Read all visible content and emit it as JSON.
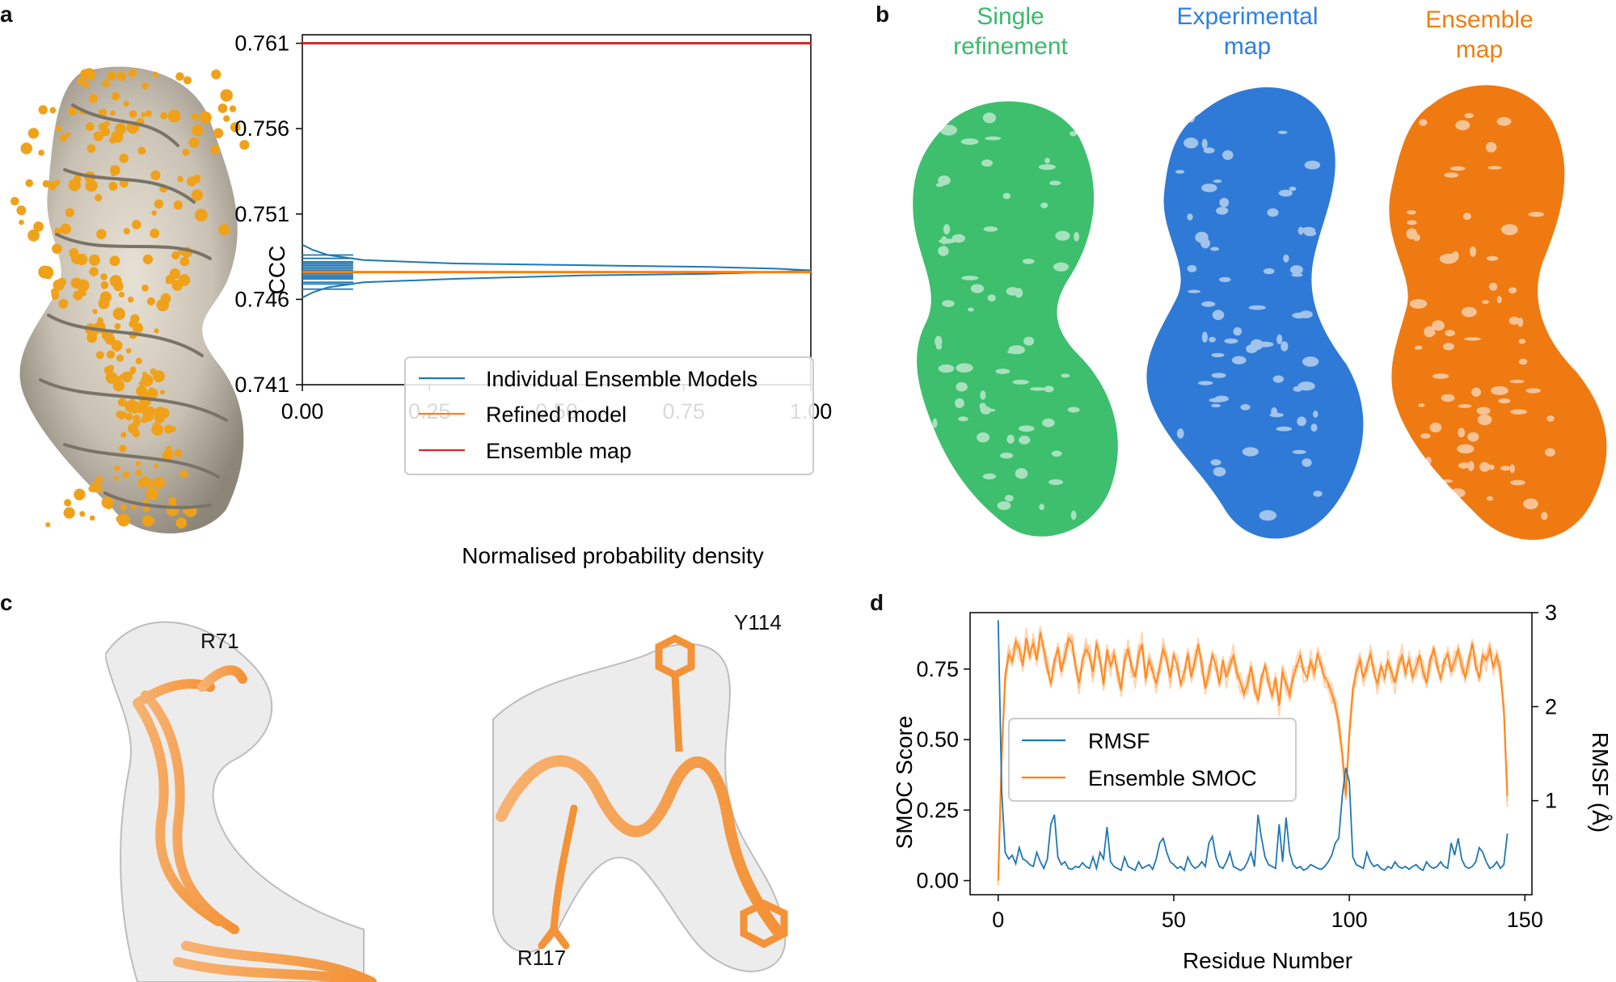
{
  "panels": {
    "a": "a",
    "b": "b",
    "c": "c",
    "d": "d"
  },
  "colors": {
    "blue": "#1f77b4",
    "orange": "#ff7f0e",
    "red": "#d62728",
    "green": "#3dbf6e",
    "map_blue": "#2f7ad6",
    "map_orange": "#ef7a12",
    "model_gold": "#f0a11a"
  },
  "panel_b": {
    "maps": [
      {
        "title_line1": "Single",
        "title_line2": "refinement",
        "color": "#3cb96c"
      },
      {
        "title_line1": "Experimental",
        "title_line2": "map",
        "color": "#2f80dd"
      },
      {
        "title_line1": "Ensemble",
        "title_line2": "map",
        "color": "#f07d12"
      }
    ]
  },
  "panel_c": {
    "labels": [
      "R71",
      "Y114",
      "R117"
    ]
  },
  "chart_data": [
    {
      "panel": "a",
      "type": "line",
      "xlabel": "Normalised probability density",
      "ylabel": "CCC",
      "xlim": [
        0.0,
        1.0
      ],
      "ylim": [
        0.741,
        0.7615
      ],
      "xticks": [
        "0.00",
        "0.25",
        "0.50",
        "0.75",
        "1.00"
      ],
      "yticks": [
        "0.741",
        "0.746",
        "0.751",
        "0.756",
        "0.761"
      ],
      "legend_position": "lower-right",
      "series": [
        {
          "name": "Individual Ensemble Models",
          "color": "#1f77b4",
          "density_curve": {
            "x": [
              0.0,
              0.02,
              0.05,
              0.12,
              0.3,
              0.55,
              0.8,
              0.93,
              1.0,
              0.93,
              0.8,
              0.55,
              0.3,
              0.12,
              0.05,
              0.02,
              0.0
            ],
            "y": [
              0.7492,
              0.7489,
              0.7486,
              0.7483,
              0.7481,
              0.748,
              0.7479,
              0.7478,
              0.7477,
              0.7476,
              0.7475,
              0.7474,
              0.7472,
              0.747,
              0.7467,
              0.7464,
              0.7461
            ]
          },
          "rug_values": [
            0.7466,
            0.7469,
            0.747,
            0.7472,
            0.7473,
            0.7474,
            0.7475,
            0.7476,
            0.7477,
            0.7478,
            0.7479,
            0.748,
            0.7481,
            0.7482,
            0.7484,
            0.7486
          ]
        },
        {
          "name": "Refined model",
          "color": "#ff7f0e",
          "value": 0.7476
        },
        {
          "name": "Ensemble map",
          "color": "#d62728",
          "value": 0.761
        }
      ]
    },
    {
      "panel": "d",
      "type": "line",
      "xlabel": "Residue Number",
      "ylabel": "SMOC Score",
      "ylabel_right": "RMSF (Å)",
      "xlim": [
        -8,
        152
      ],
      "ylim": [
        -0.05,
        0.95
      ],
      "ylim_right": [
        0.0,
        3.0
      ],
      "xticks": [
        "0",
        "50",
        "100",
        "150"
      ],
      "yticks": [
        "0.00",
        "0.25",
        "0.50",
        "0.75"
      ],
      "yticks_right": [
        "1",
        "2",
        "3"
      ],
      "legend_position": "center-left",
      "series": [
        {
          "name": "RMSF",
          "color": "#1f77b4",
          "axis": "right",
          "x": [
            0,
            1,
            2,
            3,
            4,
            5,
            6,
            7,
            8,
            9,
            10,
            11,
            12,
            13,
            14,
            15,
            16,
            17,
            18,
            19,
            20,
            21,
            22,
            23,
            24,
            25,
            26,
            27,
            28,
            29,
            30,
            31,
            32,
            33,
            34,
            35,
            36,
            37,
            38,
            39,
            40,
            41,
            42,
            43,
            44,
            45,
            46,
            47,
            48,
            49,
            50,
            51,
            52,
            53,
            54,
            55,
            56,
            57,
            58,
            59,
            60,
            61,
            62,
            63,
            64,
            65,
            66,
            67,
            68,
            69,
            70,
            71,
            72,
            73,
            74,
            75,
            76,
            77,
            78,
            79,
            80,
            81,
            82,
            83,
            84,
            85,
            86,
            87,
            88,
            89,
            90,
            91,
            92,
            93,
            94,
            95,
            96,
            97,
            98,
            99,
            100,
            101,
            102,
            103,
            104,
            105,
            106,
            107,
            108,
            109,
            110,
            111,
            112,
            113,
            114,
            115,
            116,
            117,
            118,
            119,
            120,
            121,
            122,
            123,
            124,
            125,
            126,
            127,
            128,
            129,
            130,
            131,
            132,
            133,
            134,
            135,
            136,
            137,
            138,
            139,
            140,
            141,
            142,
            143,
            144,
            145
          ],
          "y": [
            2.92,
            1.1,
            0.45,
            0.38,
            0.42,
            0.33,
            0.5,
            0.38,
            0.36,
            0.32,
            0.3,
            0.45,
            0.35,
            0.28,
            0.38,
            0.75,
            0.85,
            0.4,
            0.32,
            0.35,
            0.28,
            0.27,
            0.3,
            0.29,
            0.34,
            0.3,
            0.28,
            0.4,
            0.28,
            0.45,
            0.38,
            0.72,
            0.35,
            0.3,
            0.28,
            0.26,
            0.4,
            0.3,
            0.28,
            0.26,
            0.35,
            0.28,
            0.3,
            0.32,
            0.27,
            0.38,
            0.55,
            0.6,
            0.45,
            0.35,
            0.32,
            0.28,
            0.3,
            0.26,
            0.4,
            0.32,
            0.28,
            0.3,
            0.35,
            0.3,
            0.55,
            0.62,
            0.4,
            0.3,
            0.28,
            0.35,
            0.45,
            0.3,
            0.28,
            0.26,
            0.28,
            0.35,
            0.45,
            0.3,
            0.85,
            0.6,
            0.4,
            0.32,
            0.3,
            0.28,
            0.75,
            0.35,
            0.82,
            0.45,
            0.32,
            0.28,
            0.3,
            0.26,
            0.28,
            0.32,
            0.3,
            0.28,
            0.27,
            0.3,
            0.35,
            0.42,
            0.55,
            0.6,
            1.05,
            1.35,
            1.2,
            0.4,
            0.32,
            0.3,
            0.28,
            0.45,
            0.35,
            0.3,
            0.32,
            0.28,
            0.26,
            0.3,
            0.28,
            0.35,
            0.3,
            0.28,
            0.3,
            0.27,
            0.3,
            0.32,
            0.28,
            0.26,
            0.35,
            0.3,
            0.28,
            0.3,
            0.35,
            0.3,
            0.28,
            0.55,
            0.42,
            0.6,
            0.38,
            0.3,
            0.28,
            0.3,
            0.35,
            0.5,
            0.45,
            0.35,
            0.28,
            0.3,
            0.35,
            0.28,
            0.32,
            0.65
          ]
        },
        {
          "name": "Ensemble SMOC",
          "color": "#ff7f0e",
          "axis": "left",
          "x": [
            0,
            1,
            2,
            3,
            4,
            5,
            6,
            7,
            8,
            9,
            10,
            11,
            12,
            13,
            14,
            15,
            16,
            17,
            18,
            19,
            20,
            21,
            22,
            23,
            24,
            25,
            26,
            27,
            28,
            29,
            30,
            31,
            32,
            33,
            34,
            35,
            36,
            37,
            38,
            39,
            40,
            41,
            42,
            43,
            44,
            45,
            46,
            47,
            48,
            49,
            50,
            51,
            52,
            53,
            54,
            55,
            56,
            57,
            58,
            59,
            60,
            61,
            62,
            63,
            64,
            65,
            66,
            67,
            68,
            69,
            70,
            71,
            72,
            73,
            74,
            75,
            76,
            77,
            78,
            79,
            80,
            81,
            82,
            83,
            84,
            85,
            86,
            87,
            88,
            89,
            90,
            91,
            92,
            93,
            94,
            95,
            96,
            97,
            98,
            99,
            100,
            101,
            102,
            103,
            104,
            105,
            106,
            107,
            108,
            109,
            110,
            111,
            112,
            113,
            114,
            115,
            116,
            117,
            118,
            119,
            120,
            121,
            122,
            123,
            124,
            125,
            126,
            127,
            128,
            129,
            130,
            131,
            132,
            133,
            134,
            135,
            136,
            137,
            138,
            139,
            140,
            141,
            142,
            143,
            144,
            145
          ],
          "y": [
            0.0,
            0.45,
            0.72,
            0.8,
            0.78,
            0.85,
            0.82,
            0.76,
            0.86,
            0.8,
            0.84,
            0.78,
            0.88,
            0.82,
            0.75,
            0.7,
            0.78,
            0.82,
            0.74,
            0.8,
            0.86,
            0.84,
            0.76,
            0.7,
            0.78,
            0.82,
            0.8,
            0.74,
            0.84,
            0.78,
            0.7,
            0.82,
            0.76,
            0.8,
            0.74,
            0.68,
            0.78,
            0.82,
            0.76,
            0.72,
            0.8,
            0.84,
            0.72,
            0.78,
            0.74,
            0.7,
            0.76,
            0.82,
            0.78,
            0.72,
            0.8,
            0.76,
            0.7,
            0.74,
            0.8,
            0.72,
            0.78,
            0.84,
            0.76,
            0.68,
            0.74,
            0.8,
            0.76,
            0.7,
            0.78,
            0.72,
            0.76,
            0.8,
            0.74,
            0.7,
            0.66,
            0.7,
            0.76,
            0.68,
            0.64,
            0.72,
            0.76,
            0.7,
            0.66,
            0.72,
            0.62,
            0.74,
            0.7,
            0.66,
            0.72,
            0.76,
            0.8,
            0.74,
            0.72,
            0.78,
            0.74,
            0.8,
            0.76,
            0.72,
            0.7,
            0.66,
            0.62,
            0.56,
            0.45,
            0.3,
            0.52,
            0.68,
            0.74,
            0.78,
            0.72,
            0.76,
            0.8,
            0.74,
            0.7,
            0.76,
            0.72,
            0.78,
            0.74,
            0.7,
            0.76,
            0.8,
            0.74,
            0.78,
            0.72,
            0.76,
            0.8,
            0.74,
            0.7,
            0.78,
            0.82,
            0.76,
            0.72,
            0.78,
            0.8,
            0.74,
            0.78,
            0.82,
            0.76,
            0.72,
            0.78,
            0.84,
            0.76,
            0.72,
            0.8,
            0.78,
            0.82,
            0.76,
            0.8,
            0.74,
            0.6,
            0.3
          ]
        }
      ]
    }
  ]
}
